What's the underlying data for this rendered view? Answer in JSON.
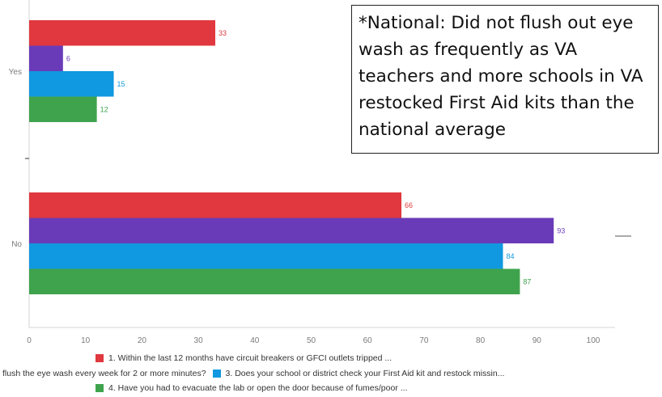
{
  "chart_data": {
    "type": "bar",
    "orientation": "horizontal",
    "categories": [
      "Yes",
      "No"
    ],
    "series": [
      {
        "name": "1. Within the last 12 months have circuit breakers or GFCI outlets tripped ...",
        "color": "#e0383e",
        "values": [
          33,
          66
        ]
      },
      {
        "name": "flush the eye wash every week for 2 or more minutes?",
        "color": "#6a3bb8",
        "values": [
          6,
          93
        ]
      },
      {
        "name": "3. Does your school or district check your First Aid kit and restock missin...",
        "color": "#1098e0",
        "values": [
          15,
          84
        ]
      },
      {
        "name": "4. Have you had to evacuate the lab or open the door because of fumes/poor ...",
        "color": "#3fa34d",
        "values": [
          12,
          87
        ]
      }
    ],
    "xlim": [
      0,
      100
    ],
    "xticks": [
      0,
      10,
      20,
      30,
      40,
      50,
      60,
      70,
      80,
      90,
      100
    ],
    "grid": false,
    "legend_position": "bottom",
    "annotation": "*National: Did not flush out eye wash as frequently as VA teachers and more schools in VA restocked First Aid kits than the national average"
  }
}
